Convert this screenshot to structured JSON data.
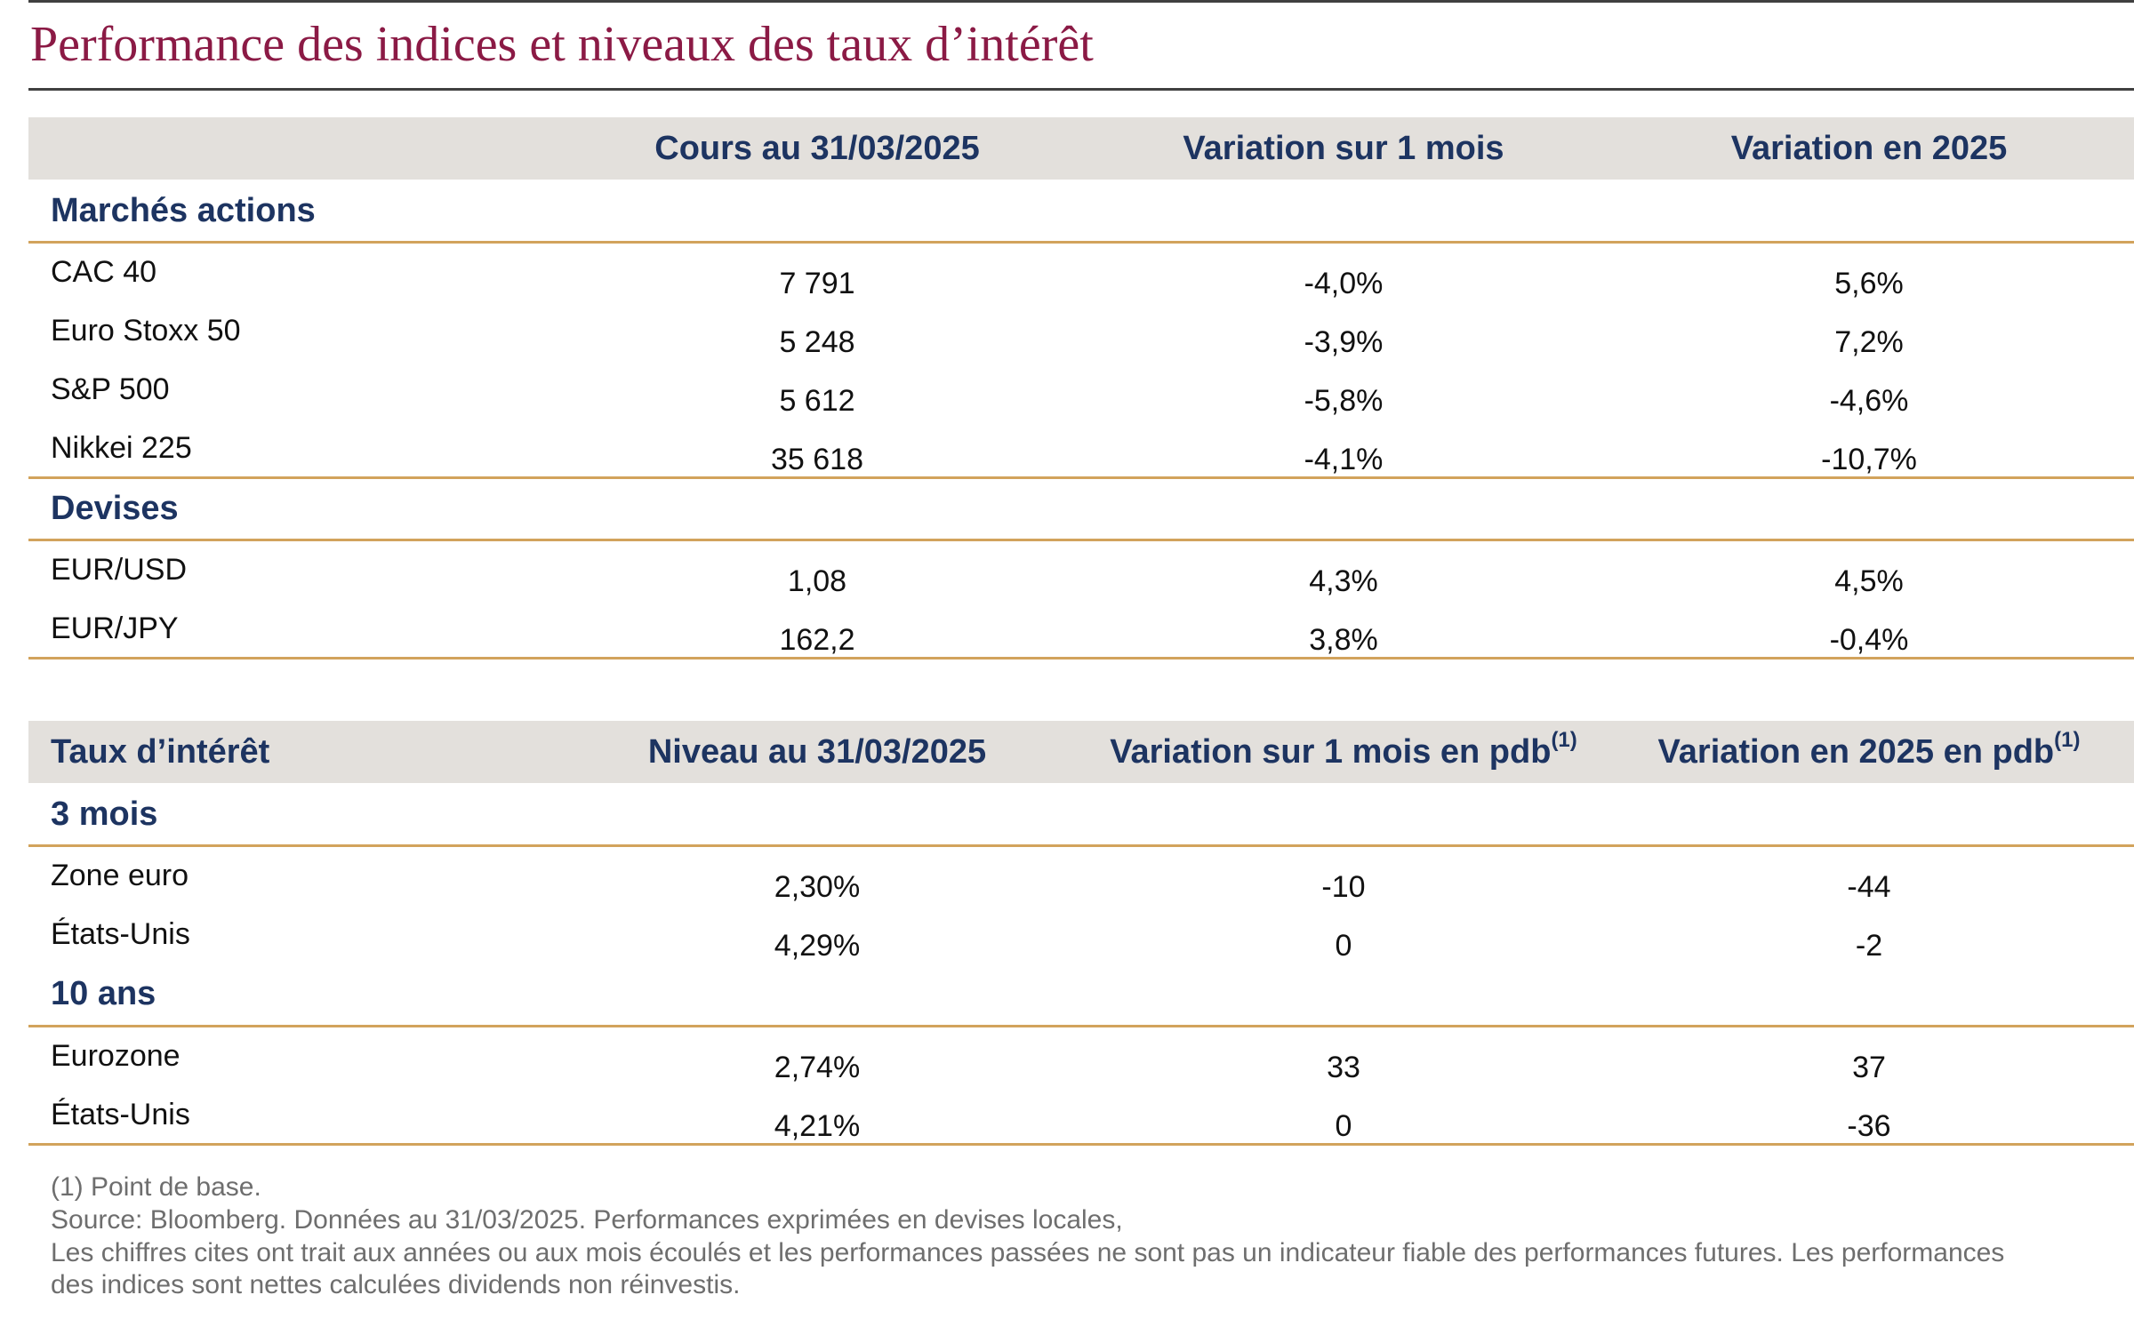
{
  "title": "Performance des indices et niveaux des taux d’intérêt",
  "table1": {
    "headers": [
      "Cours au 31/03/2025",
      "Variation sur 1 mois",
      "Variation en 2025"
    ],
    "sections": [
      {
        "label": "Marchés actions",
        "rows": [
          {
            "name": "CAC 40",
            "values": [
              "7 791",
              "-4,0%",
              "5,6%"
            ]
          },
          {
            "name": "Euro Stoxx 50",
            "values": [
              "5 248",
              "-3,9%",
              "7,2%"
            ]
          },
          {
            "name": "S&P 500",
            "values": [
              "5 612",
              "-5,8%",
              "-4,6%"
            ]
          },
          {
            "name": "Nikkei 225",
            "values": [
              "35 618",
              "-4,1%",
              "-10,7%"
            ]
          }
        ]
      },
      {
        "label": "Devises",
        "rows": [
          {
            "name": "EUR/USD",
            "values": [
              "1,08",
              "4,3%",
              "4,5%"
            ]
          },
          {
            "name": "EUR/JPY",
            "values": [
              "162,2",
              "3,8%",
              "-0,4%"
            ]
          }
        ]
      }
    ]
  },
  "table2": {
    "headers": [
      "Taux d’intérêt",
      "Niveau au 31/03/2025",
      "Variation sur 1 mois en pdb",
      "Variation en 2025 en pdb"
    ],
    "footnote_mark": "(1)",
    "sections": [
      {
        "label": "3 mois",
        "rows": [
          {
            "name": "Zone euro",
            "values": [
              "2,30%",
              "-10",
              "-44"
            ]
          },
          {
            "name": "États-Unis",
            "values": [
              "4,29%",
              "0",
              "-2"
            ]
          }
        ]
      },
      {
        "label": "10 ans",
        "rows": [
          {
            "name": "Eurozone",
            "values": [
              "2,74%",
              "33",
              "37"
            ]
          },
          {
            "name": "États-Unis",
            "values": [
              "4,21%",
              "0",
              "-36"
            ]
          }
        ]
      }
    ]
  },
  "notes": [
    "(1) Point de base.",
    "Source: Bloomberg. Données au 31/03/2025. Performances exprimées en devises locales,",
    "Les chiffres cites ont trait aux années ou aux mois écoulés et les performances passées ne sont pas un indicateur fiable des performances futures. Les performances",
    "des indices sont nettes calculées dividends non réinvestis."
  ]
}
